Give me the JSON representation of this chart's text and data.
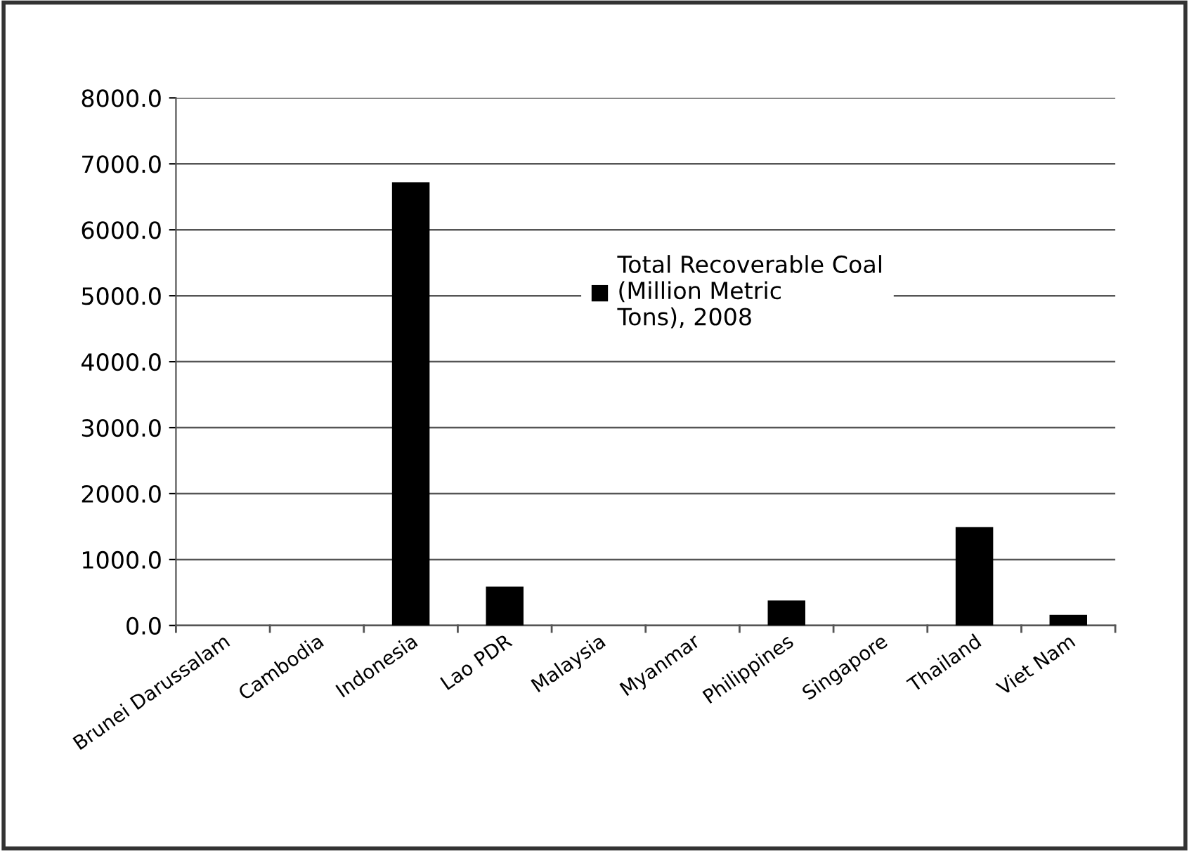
{
  "chart_data": {
    "type": "bar",
    "categories": [
      "Brunei Darussalam",
      "Cambodia",
      "Indonesia",
      "Lao PDR",
      "Malaysia",
      "Myanmar",
      "Philippines",
      "Singapore",
      "Thailand",
      "Viet Nam"
    ],
    "series": [
      {
        "name": "Total Recoverable Coal\n(Million Metric\nTons), 2008",
        "color": "#000000",
        "values": [
          0,
          0,
          6720,
          590,
          0,
          0,
          380,
          0,
          1490,
          160
        ]
      }
    ],
    "ylim": [
      0,
      8000
    ],
    "yticks": [
      {
        "value": 0,
        "label": "0.0"
      },
      {
        "value": 1000,
        "label": "1000.0"
      },
      {
        "value": 2000,
        "label": "2000.0"
      },
      {
        "value": 3000,
        "label": "3000.0"
      },
      {
        "value": 4000,
        "label": "4000.0"
      },
      {
        "value": 5000,
        "label": "5000.0"
      },
      {
        "value": 6000,
        "label": "6000.0"
      },
      {
        "value": 7000,
        "label": "7000.0"
      },
      {
        "value": 8000,
        "label": "8000.0"
      }
    ],
    "grid": "y",
    "legend": "right"
  }
}
